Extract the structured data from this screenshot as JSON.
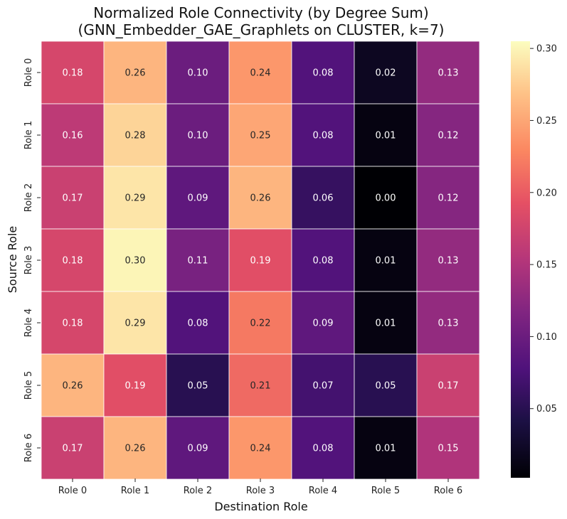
{
  "chart_data": {
    "type": "heatmap",
    "title_lines": [
      "Normalized Role Connectivity (by Degree Sum)",
      "(GNN_Embedder_GAE_Graphlets on CLUSTER, k=7)"
    ],
    "xlabel": "Destination Role",
    "ylabel": "Source Role",
    "x_categories": [
      "Role 0",
      "Role 1",
      "Role 2",
      "Role 3",
      "Role 4",
      "Role 5",
      "Role 6"
    ],
    "y_categories": [
      "Role 0",
      "Role 1",
      "Role 2",
      "Role 3",
      "Role 4",
      "Role 5",
      "Role 6"
    ],
    "values": [
      [
        0.18,
        0.26,
        0.1,
        0.24,
        0.08,
        0.02,
        0.13
      ],
      [
        0.16,
        0.28,
        0.1,
        0.25,
        0.08,
        0.01,
        0.12
      ],
      [
        0.17,
        0.29,
        0.09,
        0.26,
        0.06,
        0.0,
        0.12
      ],
      [
        0.18,
        0.3,
        0.11,
        0.19,
        0.08,
        0.01,
        0.13
      ],
      [
        0.18,
        0.29,
        0.08,
        0.22,
        0.09,
        0.01,
        0.13
      ],
      [
        0.26,
        0.19,
        0.05,
        0.21,
        0.07,
        0.05,
        0.17
      ],
      [
        0.17,
        0.26,
        0.09,
        0.24,
        0.08,
        0.01,
        0.15
      ]
    ],
    "value_labels": [
      [
        "0.18",
        "0.26",
        "0.10",
        "0.24",
        "0.08",
        "0.02",
        "0.13"
      ],
      [
        "0.16",
        "0.28",
        "0.10",
        "0.25",
        "0.08",
        "0.01",
        "0.12"
      ],
      [
        "0.17",
        "0.29",
        "0.09",
        "0.26",
        "0.06",
        "0.00",
        "0.12"
      ],
      [
        "0.18",
        "0.30",
        "0.11",
        "0.19",
        "0.08",
        "0.01",
        "0.13"
      ],
      [
        "0.18",
        "0.29",
        "0.08",
        "0.22",
        "0.09",
        "0.01",
        "0.13"
      ],
      [
        "0.26",
        "0.19",
        "0.05",
        "0.21",
        "0.07",
        "0.05",
        "0.17"
      ],
      [
        "0.17",
        "0.26",
        "0.09",
        "0.24",
        "0.08",
        "0.01",
        "0.15"
      ]
    ],
    "colormap": "magma",
    "colorbar_range": [
      0.002,
      0.305
    ],
    "colorbar_ticks": [
      0.05,
      0.1,
      0.15,
      0.2,
      0.25,
      0.3
    ],
    "colorbar_tick_labels": [
      "0.05",
      "0.10",
      "0.15",
      "0.20",
      "0.25",
      "0.30"
    ],
    "grid": false
  }
}
